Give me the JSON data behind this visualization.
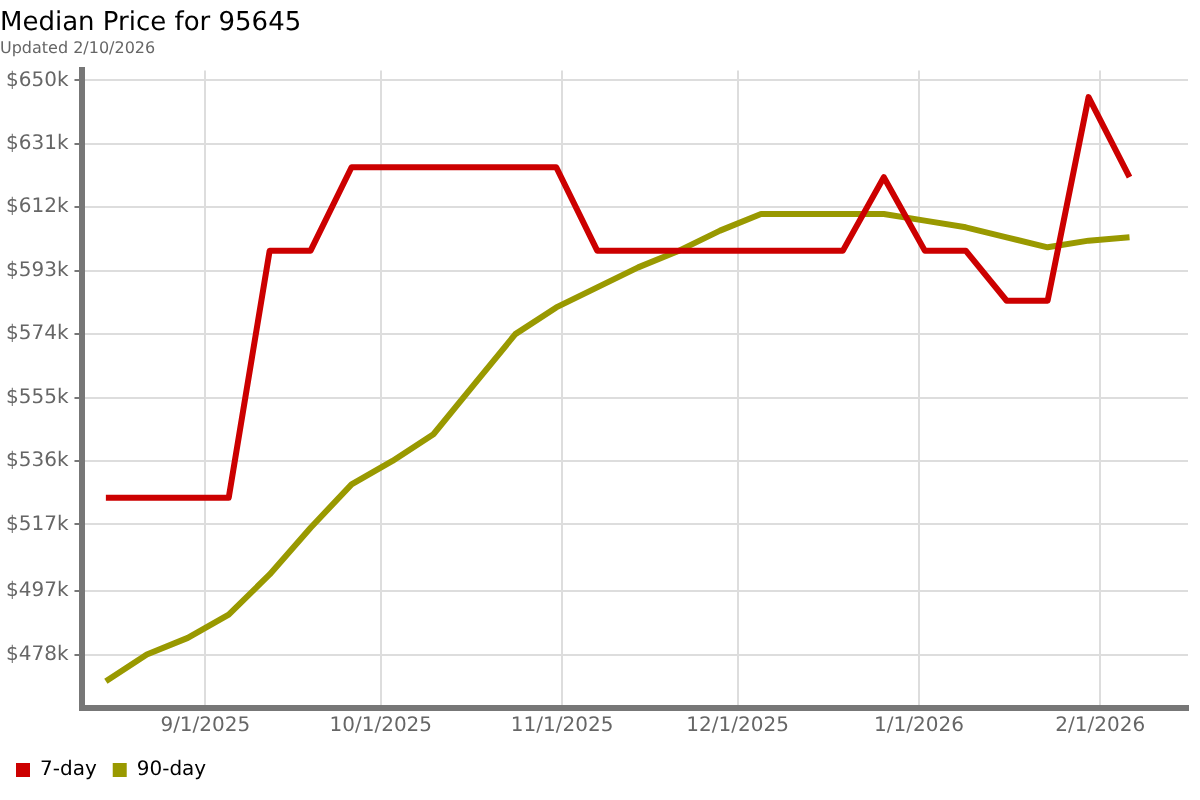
{
  "chart_data": {
    "type": "line",
    "title": "Median Price for 95645",
    "subtitle": "Updated 2/10/2026",
    "x": [
      "2025-08-15",
      "2025-08-22",
      "2025-08-29",
      "2025-09-05",
      "2025-09-12",
      "2025-09-19",
      "2025-09-26",
      "2025-10-03",
      "2025-10-10",
      "2025-10-17",
      "2025-10-24",
      "2025-10-31",
      "2025-11-07",
      "2025-11-14",
      "2025-11-21",
      "2025-11-28",
      "2025-12-05",
      "2025-12-12",
      "2025-12-19",
      "2025-12-26",
      "2026-01-02",
      "2026-01-09",
      "2026-01-16",
      "2026-01-23",
      "2026-01-30",
      "2026-02-06"
    ],
    "series": [
      {
        "name": "7-day",
        "color": "#cc0000",
        "values": [
          525,
          525,
          525,
          525,
          599,
          599,
          624,
          624,
          624,
          624,
          624,
          624,
          599,
          599,
          599,
          599,
          599,
          599,
          599,
          621,
          599,
          599,
          584,
          584,
          645,
          621
        ]
      },
      {
        "name": "90-day",
        "color": "#999900",
        "values": [
          470,
          478,
          483,
          490,
          502,
          516,
          529,
          536,
          544,
          559,
          574,
          582,
          588,
          594,
          599,
          605,
          610,
          610,
          610,
          610,
          608,
          606,
          603,
          600,
          602,
          603
        ]
      }
    ],
    "xlim": [
      "2025-08-11",
      "2026-02-16"
    ],
    "xticks": [
      {
        "value": "2025-09-01",
        "label": "9/1/2025"
      },
      {
        "value": "2025-10-01",
        "label": "10/1/2025"
      },
      {
        "value": "2025-11-01",
        "label": "11/1/2025"
      },
      {
        "value": "2025-12-01",
        "label": "12/1/2025"
      },
      {
        "value": "2026-01-01",
        "label": "1/1/2026"
      },
      {
        "value": "2026-02-01",
        "label": "2/1/2026"
      }
    ],
    "ylim": [
      462,
      653
    ],
    "yticks": [
      {
        "value": 478,
        "label": "$478k"
      },
      {
        "value": 497,
        "label": "$497k"
      },
      {
        "value": 517,
        "label": "$517k"
      },
      {
        "value": 536,
        "label": "$536k"
      },
      {
        "value": 555,
        "label": "$555k"
      },
      {
        "value": 574,
        "label": "$574k"
      },
      {
        "value": 593,
        "label": "$593k"
      },
      {
        "value": 612,
        "label": "$612k"
      },
      {
        "value": 631,
        "label": "$631k"
      },
      {
        "value": 650,
        "label": "$650k"
      }
    ],
    "grid": true,
    "legend": "bottom left",
    "marker": "none",
    "line_style": "solid"
  }
}
